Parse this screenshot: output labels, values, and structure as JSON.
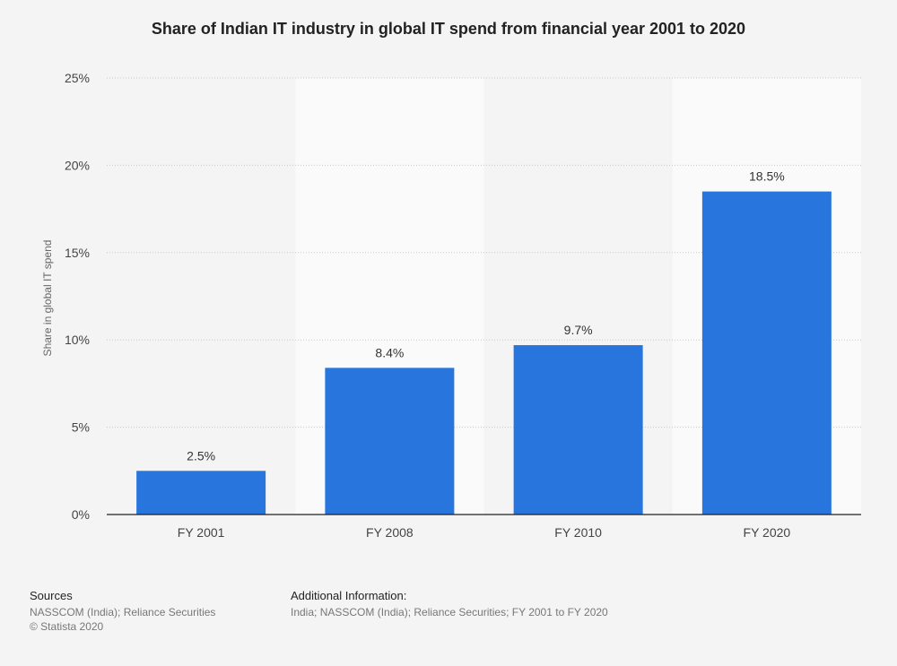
{
  "chart_data": {
    "type": "bar",
    "title": "Share of Indian IT industry in global IT spend from financial year 2001 to 2020",
    "xlabel": "",
    "ylabel": "Share in global IT spend",
    "categories": [
      "FY 2001",
      "FY 2008",
      "FY 2010",
      "FY 2020"
    ],
    "values": [
      2.5,
      8.4,
      9.7,
      18.5
    ],
    "value_labels": [
      "2.5%",
      "8.4%",
      "9.7%",
      "18.5%"
    ],
    "ylim": [
      0,
      25
    ],
    "yticks": [
      0,
      5,
      10,
      15,
      20,
      25
    ],
    "ytick_labels": [
      "0%",
      "5%",
      "10%",
      "15%",
      "20%",
      "25%"
    ],
    "grid": true,
    "bar_color": "#2876dd"
  },
  "footer": {
    "sources_heading": "Sources",
    "sources_line1": "NASSCOM (India); Reliance Securities",
    "sources_line2": "© Statista 2020",
    "addinfo_heading": "Additional Information:",
    "addinfo_line1": "India; NASSCOM (India); Reliance Securities; FY 2001 to FY 2020"
  }
}
